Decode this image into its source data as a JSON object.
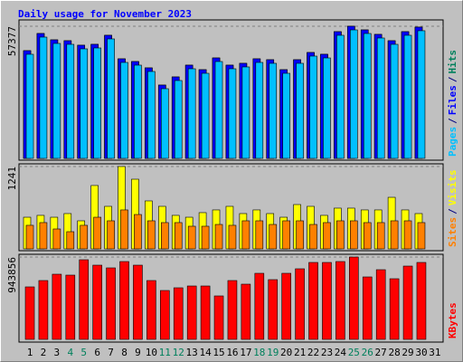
{
  "chart_data": [
    {
      "type": "bar",
      "title": "Daily usage for November 2023",
      "series": [
        {
          "name": "Hits",
          "color": "#00805c",
          "values": [
            46770,
            54230,
            51480,
            51090,
            49130,
            49520,
            53450,
            43230,
            42050,
            39300,
            31830,
            35370,
            40480,
            38510,
            43620,
            40480,
            41270,
            43230,
            42840,
            38510,
            42840,
            45980,
            45200,
            55020,
            57377,
            55800,
            53840,
            51090,
            55020,
            57000,
            null
          ]
        },
        {
          "name": "Files",
          "color": "#0000ff",
          "values": [
            46770,
            54230,
            51480,
            51090,
            49130,
            49520,
            53450,
            43230,
            42050,
            39300,
            31830,
            35370,
            40480,
            38510,
            43620,
            40480,
            41270,
            43230,
            42840,
            38510,
            42840,
            45980,
            45200,
            55020,
            57377,
            55800,
            53840,
            51090,
            55020,
            57000,
            null
          ]
        },
        {
          "name": "Pages",
          "color": "#00c0ff",
          "values": [
            45200,
            52660,
            49910,
            49520,
            47560,
            47950,
            51880,
            41660,
            40480,
            37730,
            30260,
            33800,
            38910,
            36940,
            42050,
            38910,
            39700,
            41660,
            41270,
            36940,
            41270,
            44410,
            43620,
            53450,
            55800,
            54230,
            52270,
            49520,
            53450,
            55430,
            null
          ]
        }
      ],
      "ylim": [
        0,
        57377
      ],
      "yticks": [
        57377
      ],
      "legend_separator": "/"
    },
    {
      "type": "bar",
      "series": [
        {
          "name": "Visits",
          "color": "#ffff00",
          "values": [
            477,
            505,
            477,
            532,
            423,
            955,
            641,
            1241,
            1050,
            723,
            641,
            505,
            477,
            546,
            587,
            641,
            532,
            587,
            532,
            477,
            668,
            641,
            505,
            614,
            614,
            587,
            587,
            777,
            587,
            532,
            null
          ]
        },
        {
          "name": "Sites",
          "color": "#ff8000",
          "values": [
            355,
            396,
            300,
            259,
            355,
            477,
            423,
            587,
            518,
            423,
            396,
            396,
            341,
            341,
            368,
            355,
            423,
            423,
            368,
            423,
            423,
            368,
            396,
            423,
            423,
            396,
            396,
            423,
            423,
            396,
            null
          ]
        }
      ],
      "ylim": [
        0,
        1241
      ],
      "yticks": [
        1241
      ],
      "legend_separator": "/"
    },
    {
      "type": "bar",
      "categories": [
        "1",
        "2",
        "3",
        "4",
        "5",
        "6",
        "7",
        "8",
        "9",
        "10",
        "11",
        "12",
        "13",
        "14",
        "15",
        "16",
        "17",
        "18",
        "19",
        "20",
        "21",
        "22",
        "23",
        "24",
        "25",
        "26",
        "27",
        "28",
        "29",
        "30",
        "31"
      ],
      "label_colors": [
        "#000000",
        "#000000",
        "#000000",
        "#00805c",
        "#00805c",
        "#000000",
        "#000000",
        "#000000",
        "#000000",
        "#000000",
        "#00805c",
        "#00805c",
        "#000000",
        "#000000",
        "#000000",
        "#000000",
        "#000000",
        "#00805c",
        "#00805c",
        "#000000",
        "#000000",
        "#000000",
        "#000000",
        "#000000",
        "#00805c",
        "#00805c",
        "#000000",
        "#000000",
        "#000000",
        "#000000",
        "#000000"
      ],
      "series": [
        {
          "name": "KBytes",
          "color": "#ff0000",
          "values": [
            601600,
            674200,
            746800,
            736400,
            912700,
            850500,
            819400,
            892000,
            850500,
            674200,
            560100,
            591200,
            611900,
            611900,
            497900,
            674200,
            632700,
            757200,
            684600,
            757200,
            809000,
            881600,
            881600,
            892000,
            943856,
            715700,
            798600,
            694900,
            840100,
            881600,
            null
          ]
        }
      ],
      "ylim": [
        0,
        943856
      ],
      "yticks": [
        943856
      ]
    }
  ]
}
